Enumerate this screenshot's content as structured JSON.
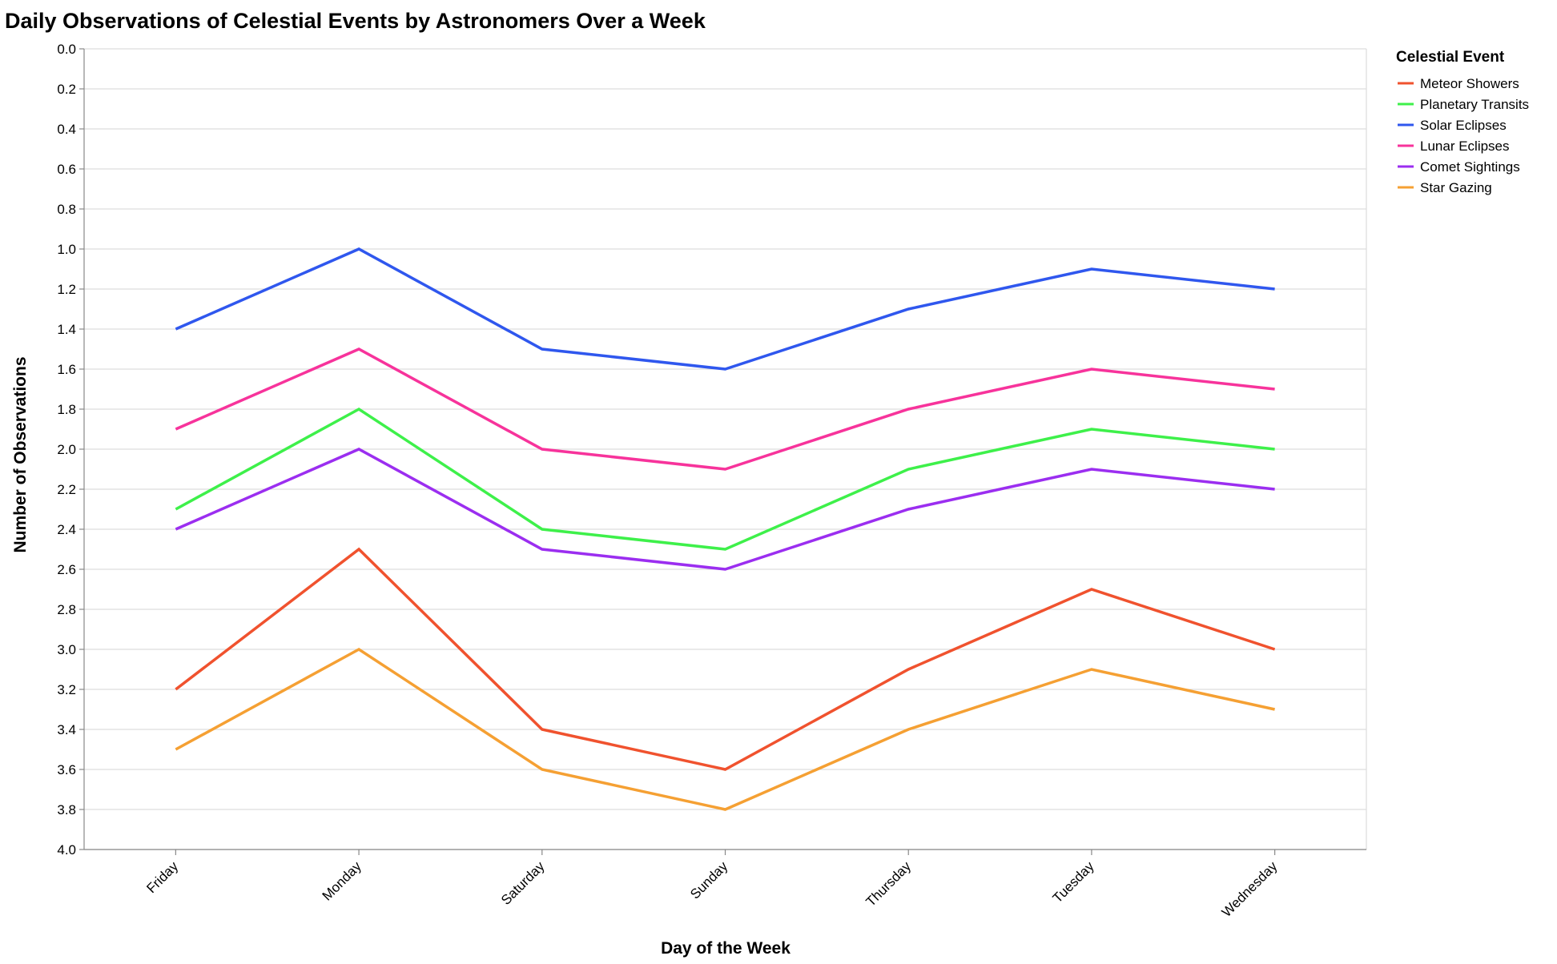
{
  "chart_data": {
    "type": "line",
    "title": "Daily Observations of Celestial Events by Astronomers Over a Week",
    "xlabel": "Day of the Week",
    "ylabel": "Number of Observations",
    "y_axis_reversed": true,
    "ylim": [
      0,
      4
    ],
    "y_ticks": [
      "0.0",
      "0.2",
      "0.4",
      "0.6",
      "0.8",
      "1.0",
      "1.2",
      "1.4",
      "1.6",
      "1.8",
      "2.0",
      "2.2",
      "2.4",
      "2.6",
      "2.8",
      "3.0",
      "3.2",
      "3.4",
      "3.6",
      "3.8",
      "4.0"
    ],
    "grid": true,
    "legend_placement": "top-right",
    "legend_title": "Celestial Event",
    "categories": [
      "Friday",
      "Monday",
      "Saturday",
      "Sunday",
      "Thursday",
      "Tuesday",
      "Wednesday"
    ],
    "series": [
      {
        "name": "Meteor Showers",
        "color": "#f0522e",
        "values": [
          3.2,
          2.5,
          3.4,
          3.6,
          3.1,
          2.7,
          3.0
        ]
      },
      {
        "name": "Planetary Transits",
        "color": "#3ef04a",
        "values": [
          2.3,
          1.8,
          2.4,
          2.5,
          2.1,
          1.9,
          2.0
        ]
      },
      {
        "name": "Solar Eclipses",
        "color": "#2f57ee",
        "values": [
          1.4,
          1.0,
          1.5,
          1.6,
          1.3,
          1.1,
          1.2
        ]
      },
      {
        "name": "Lunar Eclipses",
        "color": "#f7339b",
        "values": [
          1.9,
          1.5,
          2.0,
          2.1,
          1.8,
          1.6,
          1.7
        ]
      },
      {
        "name": "Comet Sightings",
        "color": "#9b2ef0",
        "values": [
          2.4,
          2.0,
          2.5,
          2.6,
          2.3,
          2.1,
          2.2
        ]
      },
      {
        "name": "Star Gazing",
        "color": "#f5a033",
        "values": [
          3.5,
          3.0,
          3.6,
          3.8,
          3.4,
          3.1,
          3.3
        ]
      }
    ]
  }
}
